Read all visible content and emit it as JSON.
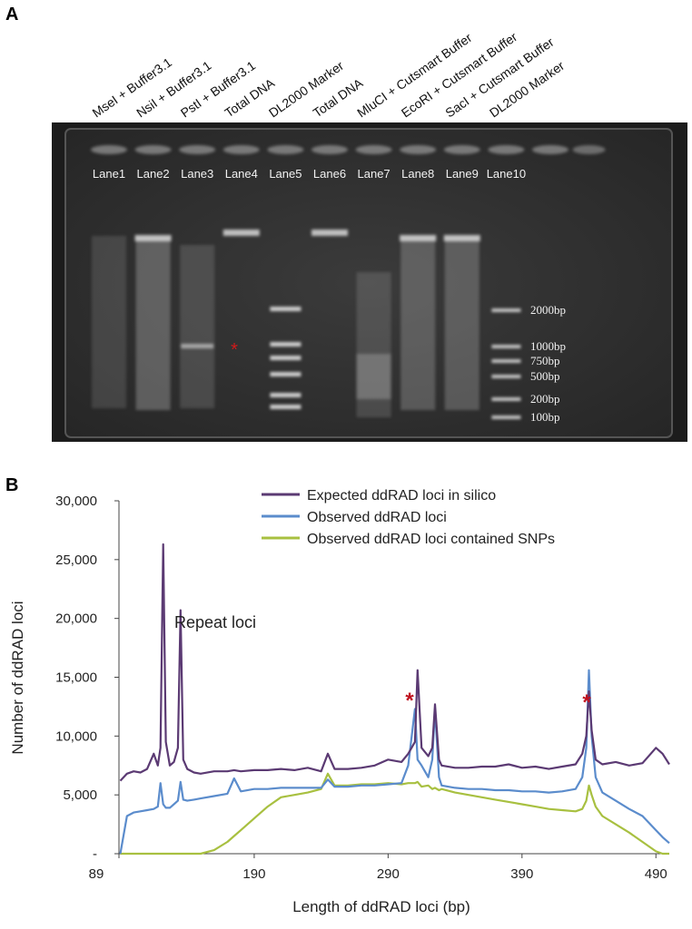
{
  "panel_a": {
    "label": "A",
    "lane_headers": [
      "MseI + Buffer3.1",
      "NsiI + Buffer3.1",
      "PstI + Buffer3.1",
      "Total DNA",
      "DL2000 Marker",
      "Total DNA",
      "MluCI + Cutsmart Buffer",
      "EcoRI + Cutsmart Buffer",
      "SacI + Cutsmart Buffer",
      "DL2000 Marker"
    ],
    "lanes": [
      "Lane1",
      "Lane2",
      "Lane3",
      "Lane4",
      "Lane5",
      "Lane6",
      "Lane7",
      "Lane8",
      "Lane9",
      "Lane10"
    ],
    "marker_labels": [
      "2000bp",
      "1000bp",
      "750bp",
      "500bp",
      "200bp",
      "100bp"
    ],
    "mark": "*"
  },
  "chart_data": {
    "type": "line",
    "panel_label": "B",
    "xlabel": "Length of ddRAD loci (bp)",
    "ylabel": "Number of ddRAD loci",
    "x": [
      90,
      95,
      100,
      105,
      110,
      115,
      118,
      120,
      122,
      124,
      127,
      130,
      133,
      135,
      137,
      140,
      145,
      150,
      160,
      170,
      175,
      180,
      190,
      200,
      210,
      220,
      230,
      240,
      245,
      250,
      260,
      270,
      280,
      290,
      300,
      305,
      310,
      312,
      315,
      320,
      323,
      325,
      328,
      330,
      340,
      350,
      360,
      370,
      380,
      390,
      400,
      410,
      420,
      430,
      435,
      438,
      440,
      442,
      445,
      450,
      460,
      470,
      480,
      490,
      495,
      500
    ],
    "series": [
      {
        "name": "Expected ddRAD loci in silico",
        "color": "#5b3a73",
        "values": [
          6200,
          6800,
          7000,
          6900,
          7200,
          8500,
          7500,
          9000,
          26300,
          9500,
          7500,
          7800,
          9000,
          20700,
          8000,
          7200,
          6900,
          6800,
          7000,
          7000,
          7100,
          7000,
          7100,
          7100,
          7200,
          7100,
          7300,
          7000,
          8500,
          7200,
          7200,
          7300,
          7500,
          8000,
          7800,
          8500,
          9500,
          15600,
          9000,
          8300,
          9000,
          12700,
          8000,
          7500,
          7300,
          7300,
          7400,
          7400,
          7600,
          7300,
          7400,
          7200,
          7400,
          7600,
          8500,
          10000,
          13800,
          10500,
          8000,
          7600,
          7800,
          7500,
          7700,
          9000,
          8500,
          7600
        ]
      },
      {
        "name": "Observed ddRAD loci",
        "color": "#5b8ccc",
        "values": [
          0,
          3200,
          3500,
          3600,
          3700,
          3800,
          4000,
          6000,
          4200,
          3900,
          3900,
          4200,
          4500,
          6100,
          4600,
          4500,
          4600,
          4700,
          4900,
          5100,
          6400,
          5300,
          5500,
          5500,
          5600,
          5600,
          5600,
          5600,
          6300,
          5700,
          5700,
          5800,
          5800,
          5900,
          6000,
          7500,
          12300,
          8000,
          7500,
          6500,
          8000,
          12300,
          6500,
          5800,
          5600,
          5500,
          5500,
          5400,
          5400,
          5300,
          5300,
          5200,
          5300,
          5500,
          6500,
          9000,
          15600,
          10000,
          6500,
          5200,
          4500,
          3800,
          3200,
          2000,
          1400,
          900
        ]
      },
      {
        "name": "Observed ddRAD loci contained SNPs",
        "color": "#a8c040",
        "values": [
          0,
          0,
          0,
          0,
          0,
          0,
          0,
          0,
          0,
          0,
          0,
          0,
          0,
          0,
          0,
          0,
          0,
          0,
          300,
          1000,
          1500,
          2000,
          3000,
          4000,
          4800,
          5000,
          5200,
          5500,
          6800,
          5800,
          5800,
          5900,
          5900,
          6000,
          5900,
          6000,
          6000,
          6100,
          5700,
          5800,
          5500,
          5600,
          5400,
          5500,
          5200,
          5000,
          4800,
          4600,
          4400,
          4200,
          4000,
          3800,
          3700,
          3600,
          3800,
          4500,
          5800,
          5000,
          4000,
          3200,
          2500,
          1800,
          1000,
          200,
          0,
          0
        ]
      }
    ],
    "xlim": [
      89,
      500
    ],
    "xticks": [
      89,
      190,
      290,
      390,
      490
    ],
    "ylim": [
      0,
      30000
    ],
    "yticks": [
      {
        "value": 0,
        "label": "-"
      },
      {
        "value": 5000,
        "label": "5,000"
      },
      {
        "value": 10000,
        "label": "10,000"
      },
      {
        "value": 15000,
        "label": "15,000"
      },
      {
        "value": 20000,
        "label": "20,000"
      },
      {
        "value": 25000,
        "label": "25,000"
      },
      {
        "value": 30000,
        "label": "30,000"
      }
    ],
    "legend": "top",
    "annotations": [
      {
        "text": "Repeat loci",
        "color": "#222222"
      },
      {
        "text": "*",
        "color": "#c0111f"
      },
      {
        "text": "*",
        "color": "#c0111f"
      }
    ]
  }
}
